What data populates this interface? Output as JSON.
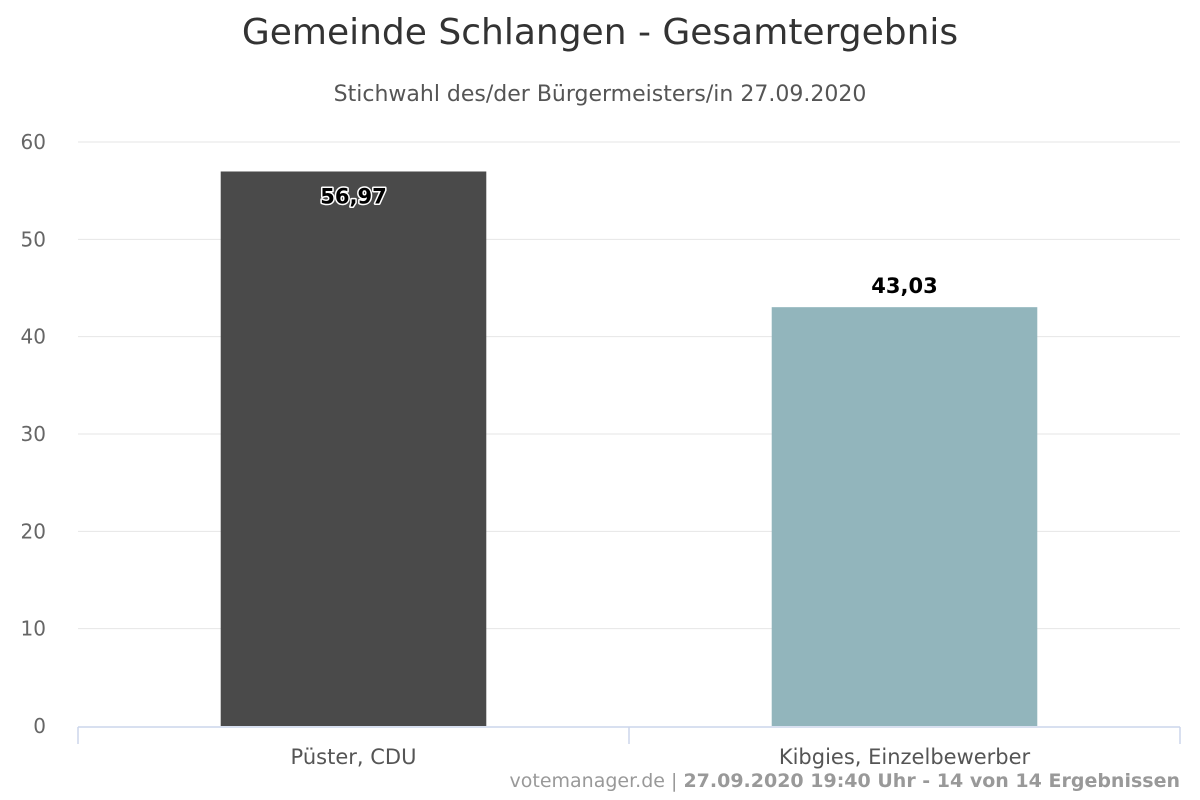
{
  "title": "Gemeinde Schlangen - Gesamtergebnis",
  "subtitle": "Stichwahl des/der Bürgermeisters/in 27.09.2020",
  "footer": {
    "source": "votemanager.de",
    "separator": " | ",
    "status": "27.09.2020 19:40 Uhr - 14 von 14 Ergebnissen"
  },
  "chart_data": {
    "type": "bar",
    "categories": [
      "Püster, CDU",
      "Kibgies, Einzelbewerber"
    ],
    "values": [
      56.97,
      43.03
    ],
    "value_labels": [
      "56,97",
      "43,03"
    ],
    "colors": [
      "#4a4a4a",
      "#92b5bc"
    ],
    "ylim": [
      0,
      60
    ],
    "yticks": [
      0,
      10,
      20,
      30,
      40,
      50,
      60
    ],
    "grid": true,
    "legend": "none"
  }
}
